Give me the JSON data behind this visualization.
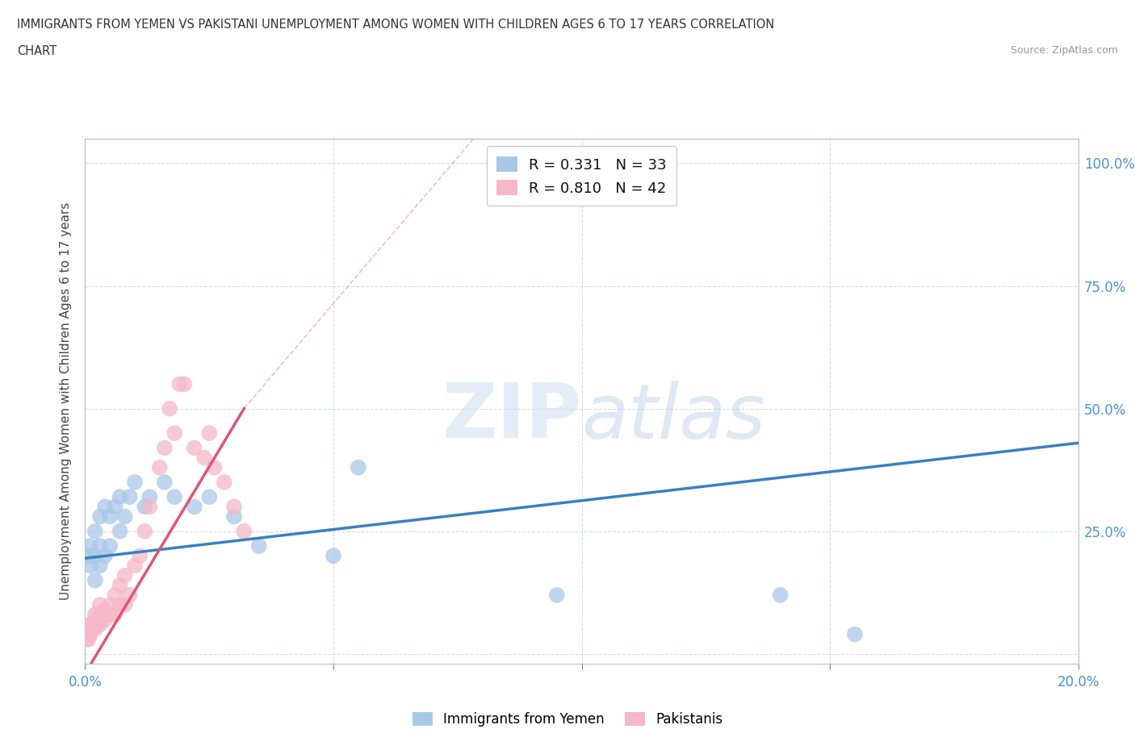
{
  "title_line1": "IMMIGRANTS FROM YEMEN VS PAKISTANI UNEMPLOYMENT AMONG WOMEN WITH CHILDREN AGES 6 TO 17 YEARS CORRELATION",
  "title_line2": "CHART",
  "source_text": "Source: ZipAtlas.com",
  "ylabel": "Unemployment Among Women with Children Ages 6 to 17 years",
  "xlim": [
    0.0,
    0.2
  ],
  "ylim": [
    -0.02,
    1.05
  ],
  "xticks": [
    0.0,
    0.05,
    0.1,
    0.15,
    0.2
  ],
  "xticklabels": [
    "0.0%",
    "",
    "",
    "",
    "20.0%"
  ],
  "yticks": [
    0.0,
    0.25,
    0.5,
    0.75,
    1.0
  ],
  "yticklabels": [
    "",
    "25.0%",
    "50.0%",
    "75.0%",
    "100.0%"
  ],
  "background_color": "#ffffff",
  "watermark_zip": "ZIP",
  "watermark_atlas": "atlas",
  "yemen_color": "#a8c8e8",
  "pakistan_color": "#f5b8c8",
  "yemen_line_color": "#3a7fc1",
  "pakistan_line_color": "#e05575",
  "R_yemen": 0.331,
  "N_yemen": 33,
  "R_pakistan": 0.81,
  "N_pakistan": 42,
  "legend_label_yemen": "Immigrants from Yemen",
  "legend_label_pakistan": "Pakistanis",
  "yemen_scatter_x": [
    0.0005,
    0.001,
    0.001,
    0.0015,
    0.002,
    0.002,
    0.002,
    0.003,
    0.003,
    0.003,
    0.004,
    0.004,
    0.005,
    0.005,
    0.006,
    0.007,
    0.007,
    0.008,
    0.009,
    0.01,
    0.012,
    0.013,
    0.016,
    0.018,
    0.022,
    0.025,
    0.03,
    0.035,
    0.05,
    0.055,
    0.095,
    0.14,
    0.155
  ],
  "yemen_scatter_y": [
    0.2,
    0.18,
    0.22,
    0.2,
    0.15,
    0.2,
    0.25,
    0.18,
    0.22,
    0.28,
    0.2,
    0.3,
    0.22,
    0.28,
    0.3,
    0.25,
    0.32,
    0.28,
    0.32,
    0.35,
    0.3,
    0.32,
    0.35,
    0.32,
    0.3,
    0.32,
    0.28,
    0.22,
    0.2,
    0.38,
    0.12,
    0.12,
    0.04
  ],
  "pakistan_scatter_x": [
    0.0003,
    0.0005,
    0.0007,
    0.001,
    0.001,
    0.0013,
    0.0015,
    0.002,
    0.002,
    0.002,
    0.0025,
    0.003,
    0.003,
    0.003,
    0.004,
    0.004,
    0.005,
    0.005,
    0.006,
    0.006,
    0.007,
    0.007,
    0.008,
    0.008,
    0.009,
    0.01,
    0.011,
    0.012,
    0.013,
    0.015,
    0.016,
    0.017,
    0.018,
    0.019,
    0.02,
    0.022,
    0.024,
    0.025,
    0.026,
    0.028,
    0.03,
    0.032
  ],
  "pakistan_scatter_y": [
    0.03,
    0.04,
    0.03,
    0.04,
    0.06,
    0.05,
    0.06,
    0.05,
    0.07,
    0.08,
    0.06,
    0.06,
    0.08,
    0.1,
    0.07,
    0.09,
    0.08,
    0.1,
    0.08,
    0.12,
    0.1,
    0.14,
    0.1,
    0.16,
    0.12,
    0.18,
    0.2,
    0.25,
    0.3,
    0.38,
    0.42,
    0.5,
    0.45,
    0.55,
    0.55,
    0.42,
    0.4,
    0.45,
    0.38,
    0.35,
    0.3,
    0.25
  ],
  "yemen_line_x": [
    0.0,
    0.2
  ],
  "yemen_line_y": [
    0.195,
    0.43
  ],
  "pakistan_line_x": [
    0.0,
    0.032
  ],
  "pakistan_line_y": [
    -0.04,
    0.5
  ]
}
